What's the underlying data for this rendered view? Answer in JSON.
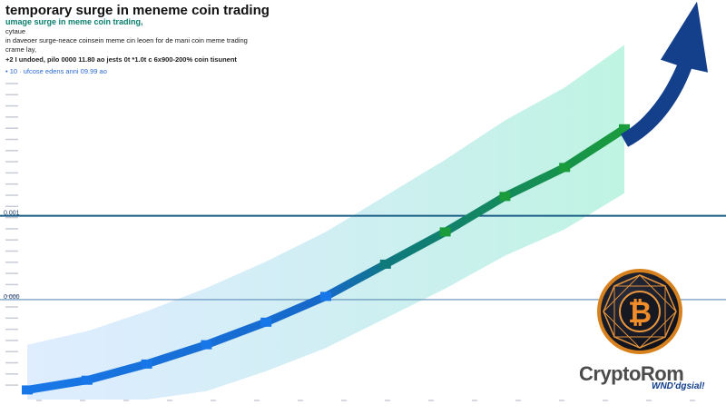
{
  "header": {
    "title": "temporary surge in meneme coin trading",
    "subtitle": "umage surge in meme coin trading,",
    "lines": [
      "cytaue",
      "in daveoer surge-neace coinsein meme cin leoen for de mani coin meme trading",
      "crame lay,",
      "+2 I undoed, pilo 0000 11.80 ao  jests 0t *1.0t c 6x900-200% coin tisunent"
    ],
    "meta": "• 10 · ufcose edens anni 09.99 ao"
  },
  "chart_data": {
    "type": "line",
    "title": "temporary surge in meneme coin trading",
    "x": [
      0,
      10,
      20,
      30,
      40,
      50,
      60,
      70,
      80,
      90,
      100
    ],
    "series": [
      {
        "name": "",
        "values": [
          3,
          6,
          11,
          17,
          24,
          32,
          42,
          52,
          63,
          72,
          84
        ]
      }
    ],
    "ylim": [
      0,
      100
    ],
    "reference_lines": [
      {
        "label": "0.001",
        "value": 57
      },
      {
        "label": "0 000",
        "value": 31
      }
    ],
    "grid": false,
    "legend": "none",
    "colors": {
      "start": "#1877e8",
      "mid": "#0f7a7a",
      "end": "#1a9b3c",
      "arrow": "#143f8a",
      "halo": "#5fe3b6"
    }
  },
  "brand": {
    "name": "CryptoRom",
    "watermark": "WND'dgsial!",
    "bitcoin_symbol": "₿"
  }
}
